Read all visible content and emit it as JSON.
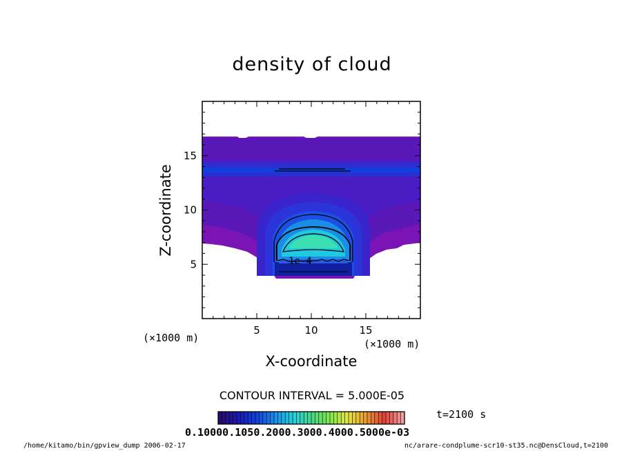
{
  "chart_data": {
    "type": "heatmap",
    "title": "density of cloud",
    "xlabel": "X-coordinate",
    "ylabel": "Z-coordinate",
    "x_unit": "(×1000 m)",
    "y_unit": "(×1000 m)",
    "xlim": [
      0,
      20
    ],
    "ylim": [
      0,
      20
    ],
    "x_ticks": [
      5,
      10,
      15
    ],
    "y_ticks": [
      5,
      10,
      15
    ],
    "contour_interval_text": "CONTOUR INTERVAL = 5.000E-05",
    "contour_label": "1e-4",
    "time_text": "t=2100 s",
    "colorbar_text": "0.10000.1050.2000.3000.4000.5000e-03",
    "colorbar_range": [
      0,
      0.0005
    ],
    "colors": [
      "#2a0a6e",
      "#1c1ab4",
      "#1040e0",
      "#1a8ee6",
      "#20d2e0",
      "#4ad68a",
      "#7ee84a",
      "#e6e640",
      "#e89a30",
      "#e04038",
      "#f0a0a0"
    ]
  },
  "footer": {
    "left": "/home/kitamo/bin/gpview_dump  2006-02-17",
    "right": "nc/arare-condplume-scr10-st35.nc@DensCloud,t=2100"
  }
}
